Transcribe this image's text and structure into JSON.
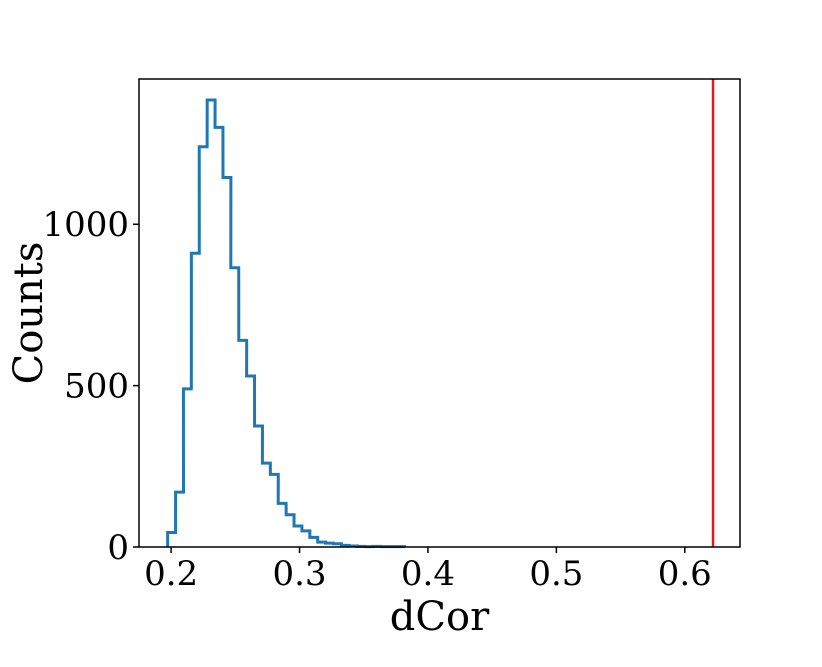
{
  "chart_data": {
    "type": "histogram",
    "title": "",
    "xlabel": "dCor",
    "ylabel": "Counts",
    "xlim": [
      0.175,
      0.643
    ],
    "ylim": [
      0,
      1450
    ],
    "xticks": [
      0.2,
      0.3,
      0.4,
      0.5,
      0.6
    ],
    "xtick_labels": [
      "0.2",
      "0.3",
      "0.4",
      "0.5",
      "0.6"
    ],
    "yticks": [
      0,
      500,
      1000
    ],
    "ytick_labels": [
      "0",
      "500",
      "1000"
    ],
    "bin_width": 0.00615,
    "bin_starts": [
      0.1973,
      0.2035,
      0.2096,
      0.2158,
      0.2219,
      0.2281,
      0.2342,
      0.2404,
      0.2465,
      0.2527,
      0.2588,
      0.265,
      0.2711,
      0.2773,
      0.2834,
      0.2896,
      0.2957,
      0.3019,
      0.308,
      0.3142,
      0.3203,
      0.3265,
      0.3326,
      0.3388,
      0.3449,
      0.3511,
      0.3572,
      0.3634,
      0.3695,
      0.3757
    ],
    "counts": [
      45,
      170,
      490,
      910,
      1240,
      1385,
      1300,
      1145,
      865,
      640,
      530,
      375,
      260,
      225,
      135,
      100,
      65,
      50,
      30,
      15,
      12,
      10,
      5,
      3,
      2,
      1,
      2,
      1,
      1,
      1
    ],
    "histogram_color": "#1f77b4",
    "reference_line": {
      "x": 0.622,
      "color": "#e41a1c"
    },
    "grid": false,
    "legend": null
  }
}
